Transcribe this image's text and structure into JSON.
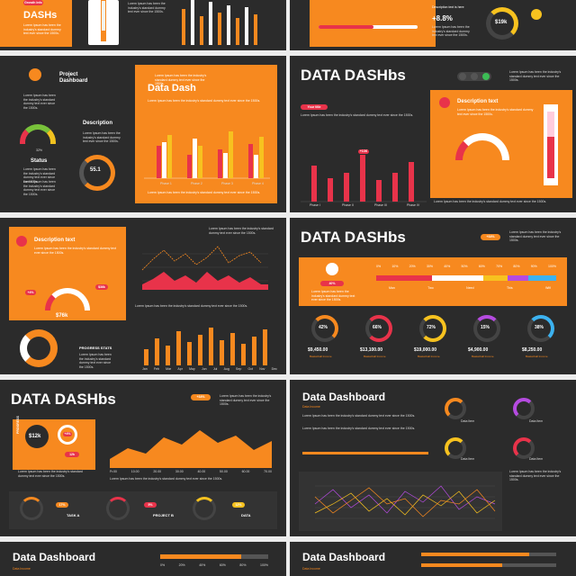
{
  "s1": {
    "badge": "Growth Info",
    "title": "DASHs",
    "desc": "Lorem Ipsum has been the industry's standard dummy text ever since the 1500s.",
    "pct": "+8.8%",
    "desc_title": "Description text is here",
    "money": "$19k"
  },
  "s2": {
    "project_title": "Project Dashboard",
    "lorem": "Lorem Ipsum has been the industry's standard dummy text ever since the 1500s.",
    "gauge_pct": "32%",
    "status": "Status",
    "description": "Description",
    "ring_value": "55.1",
    "ring_label": "Lorem ipsum",
    "chart_title": "Data Dash",
    "phases": [
      "Phase 1",
      "Phase 2",
      "Phase 3",
      "Phase 4"
    ]
  },
  "s3": {
    "title": "DATA DASHbs",
    "pill": "Your title",
    "desc_title": "Description text",
    "bar_label": "+13K",
    "phases": [
      "Phase I",
      "Phase II",
      "Phase III",
      "Phase IV"
    ]
  },
  "s4": {
    "desc_title": "Description text",
    "gauge_left": "+4%",
    "gauge_right": "$36k",
    "gauge_value": "$76k",
    "progress": "PROGRESS STATS",
    "months": [
      "Jan",
      "Feb",
      "Mar",
      "Apr",
      "May",
      "Jun",
      "Jul",
      "Aug",
      "Sep",
      "Oct",
      "Nov",
      "Dec"
    ]
  },
  "s5": {
    "title": "DATA DASHbs",
    "badge": "+34%",
    "pct_label": "40%",
    "scale": [
      "0%",
      "10%",
      "20%",
      "30%",
      "40%",
      "50%",
      "60%",
      "70%",
      "80%",
      "90%",
      "100%"
    ],
    "legend": [
      "Man",
      "Two",
      "Need",
      "This",
      "Wifi"
    ],
    "donuts": [
      {
        "pct": "42%",
        "value": "$9,450.00",
        "label": "Basketball Income"
      },
      {
        "pct": "66%",
        "value": "$13,100.00",
        "label": "Basketball Income"
      },
      {
        "pct": "72%",
        "value": "$19,000.00",
        "label": "Basketball Income"
      },
      {
        "pct": "15%",
        "value": "$4,900.00",
        "label": "Basketball Income"
      },
      {
        "pct": "38%",
        "value": "$8,250.00",
        "label": "Basketball Income"
      }
    ]
  },
  "s6": {
    "title": "DATA DASHbs",
    "badge": "+34%",
    "value1": "$12k",
    "value2": "+4%",
    "value3": "12k",
    "tasks": [
      {
        "pct": "17%",
        "label": "TASK A"
      },
      {
        "pct": "5%",
        "label": "PROJECT B"
      },
      {
        "pct": "12%",
        "label": "DATA"
      }
    ],
    "progress_label": "PROGRESS",
    "axis": [
      "Fr.00",
      "10.00",
      "20.00",
      "30.00",
      "40.00",
      "50.00",
      "60.00",
      "70.00"
    ]
  },
  "s7": {
    "title": "Data Dashboard",
    "subtitle": "Data Income",
    "gauges": [
      "Data Item",
      "Data Item",
      "Data Item",
      "Data Item"
    ]
  },
  "s8": {
    "title": "Data Dashboard",
    "subtitle": "Data Income"
  },
  "s9": {
    "title": "Data Dashboard",
    "subtitle": "Data Income"
  }
}
